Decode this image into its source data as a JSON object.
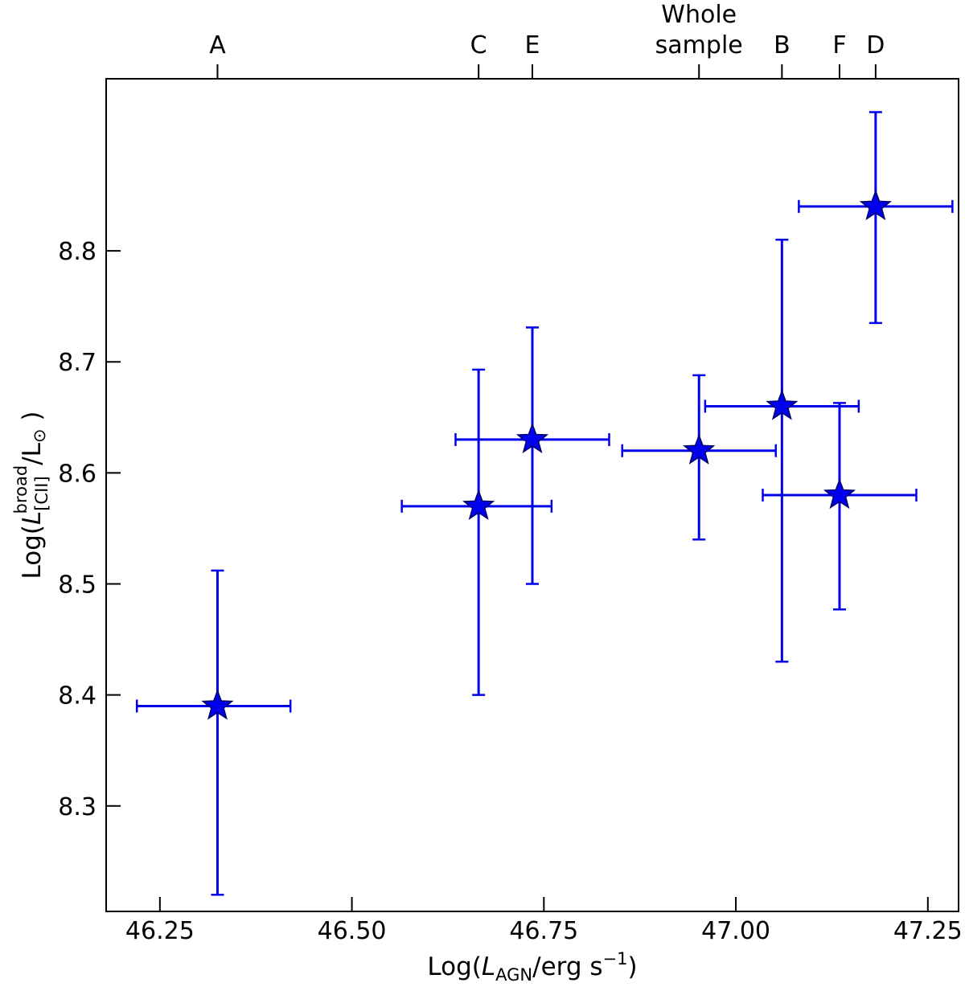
{
  "chart_data": {
    "type": "scatter",
    "xlabel": "Log(L_AGN/erg s^-1)",
    "ylabel": "Log(L^broad_[CII]/L_⊙)",
    "xlim": [
      46.18,
      47.29
    ],
    "ylim": [
      8.205,
      8.955
    ],
    "x_ticks": [
      "46.25",
      "46.50",
      "46.75",
      "47.00",
      "47.25"
    ],
    "y_ticks": [
      "8.3",
      "8.4",
      "8.5",
      "8.6",
      "8.7",
      "8.8"
    ],
    "grid": false,
    "marker": "star",
    "color": "#0000ee",
    "points": [
      {
        "label": "A",
        "x": 46.325,
        "y": 8.39,
        "xerr": [
          0.105,
          0.095
        ],
        "yerr": [
          0.17,
          0.122
        ]
      },
      {
        "label": "C",
        "x": 46.665,
        "y": 8.57,
        "xerr": [
          0.1,
          0.095
        ],
        "yerr": [
          0.17,
          0.123
        ]
      },
      {
        "label": "E",
        "x": 46.735,
        "y": 8.63,
        "xerr": [
          0.1,
          0.1
        ],
        "yerr": [
          0.13,
          0.101
        ]
      },
      {
        "label": "Whole sample",
        "x": 46.952,
        "y": 8.62,
        "xerr": [
          0.1,
          0.1
        ],
        "yerr": [
          0.08,
          0.068
        ]
      },
      {
        "label": "B",
        "x": 47.06,
        "y": 8.66,
        "xerr": [
          0.1,
          0.1
        ],
        "yerr": [
          0.23,
          0.15
        ]
      },
      {
        "label": "F",
        "x": 47.135,
        "y": 8.58,
        "xerr": [
          0.1,
          0.1
        ],
        "yerr": [
          0.103,
          0.083
        ]
      },
      {
        "label": "D",
        "x": 47.182,
        "y": 8.84,
        "xerr": [
          0.1,
          0.1
        ],
        "yerr": [
          0.105,
          0.085
        ]
      }
    ],
    "top_tick_labels": [
      "A",
      "C",
      "E",
      "Whole",
      "sample",
      "B",
      "F",
      "D"
    ]
  }
}
